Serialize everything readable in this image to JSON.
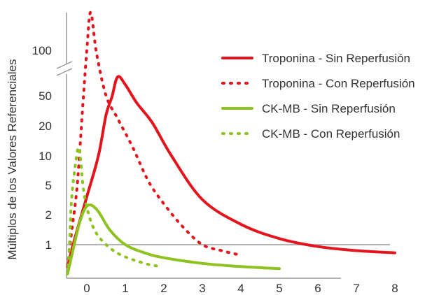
{
  "chart_data": {
    "type": "line",
    "ylabel": "Múltiplos de los Valores Referenciales",
    "xlabel": "",
    "x_ticks": [
      "0",
      "1",
      "2",
      "3",
      "4",
      "5",
      "6",
      "7",
      "8"
    ],
    "y_ticks": [
      "1",
      "2",
      "5",
      "10",
      "20",
      "50",
      "100"
    ],
    "y_scale": "log-like broken axis",
    "axis_break": "between 50 and 100",
    "reference_line": 1,
    "xlim": [
      -0.5,
      8
    ],
    "grid": false,
    "legend_position": "top-right",
    "series": [
      {
        "name": "Troponina - Sin Reperfusión",
        "color": "#e3141b",
        "style": "solid",
        "points": [
          [
            -0.5,
            0.55
          ],
          [
            -0.3,
            1.2
          ],
          [
            0,
            3.5
          ],
          [
            0.3,
            10
          ],
          [
            0.5,
            28
          ],
          [
            0.65,
            48
          ],
          [
            0.8,
            57
          ],
          [
            1.0,
            54
          ],
          [
            1.3,
            40
          ],
          [
            1.7,
            22
          ],
          [
            2.2,
            10
          ],
          [
            3.0,
            3.2
          ],
          [
            4.0,
            1.6
          ],
          [
            5.0,
            1.15
          ],
          [
            6.0,
            0.95
          ],
          [
            7.0,
            0.85
          ],
          [
            8.0,
            0.8
          ]
        ]
      },
      {
        "name": "Troponina - Con Reperfusión",
        "color": "#e3141b",
        "style": "dotted",
        "points": [
          [
            -0.5,
            0.55
          ],
          [
            -0.4,
            1.3
          ],
          [
            -0.25,
            5
          ],
          [
            -0.1,
            40
          ],
          [
            0,
            100
          ],
          [
            0.1,
            125
          ],
          [
            0.25,
            95
          ],
          [
            0.5,
            50
          ],
          [
            0.8,
            25
          ],
          [
            1.2,
            12
          ],
          [
            1.6,
            5.5
          ],
          [
            2.0,
            2.8
          ],
          [
            2.5,
            1.5
          ],
          [
            3.0,
            1.0
          ],
          [
            3.5,
            0.85
          ],
          [
            4.0,
            0.75
          ]
        ]
      },
      {
        "name": "CK-MB - Sin Reperfusión",
        "color": "#8dc21f",
        "style": "solid",
        "points": [
          [
            -0.5,
            0.45
          ],
          [
            -0.35,
            0.9
          ],
          [
            -0.2,
            1.6
          ],
          [
            -0.05,
            2.4
          ],
          [
            0.1,
            2.7
          ],
          [
            0.3,
            2.2
          ],
          [
            0.6,
            1.4
          ],
          [
            1.0,
            1.0
          ],
          [
            1.5,
            0.8
          ],
          [
            2.0,
            0.7
          ],
          [
            3.0,
            0.6
          ],
          [
            4.0,
            0.55
          ],
          [
            5.0,
            0.52
          ]
        ]
      },
      {
        "name": "CK-MB - Con Reperfusión",
        "color": "#8dc21f",
        "style": "dotted",
        "points": [
          [
            -0.5,
            0.45
          ],
          [
            -0.45,
            1
          ],
          [
            -0.4,
            3
          ],
          [
            -0.3,
            8
          ],
          [
            -0.2,
            12
          ],
          [
            -0.1,
            5
          ],
          [
            0,
            2.5
          ],
          [
            0.2,
            1.4
          ],
          [
            0.5,
            1.0
          ],
          [
            0.9,
            0.75
          ],
          [
            1.5,
            0.6
          ],
          [
            1.9,
            0.55
          ]
        ]
      }
    ]
  }
}
